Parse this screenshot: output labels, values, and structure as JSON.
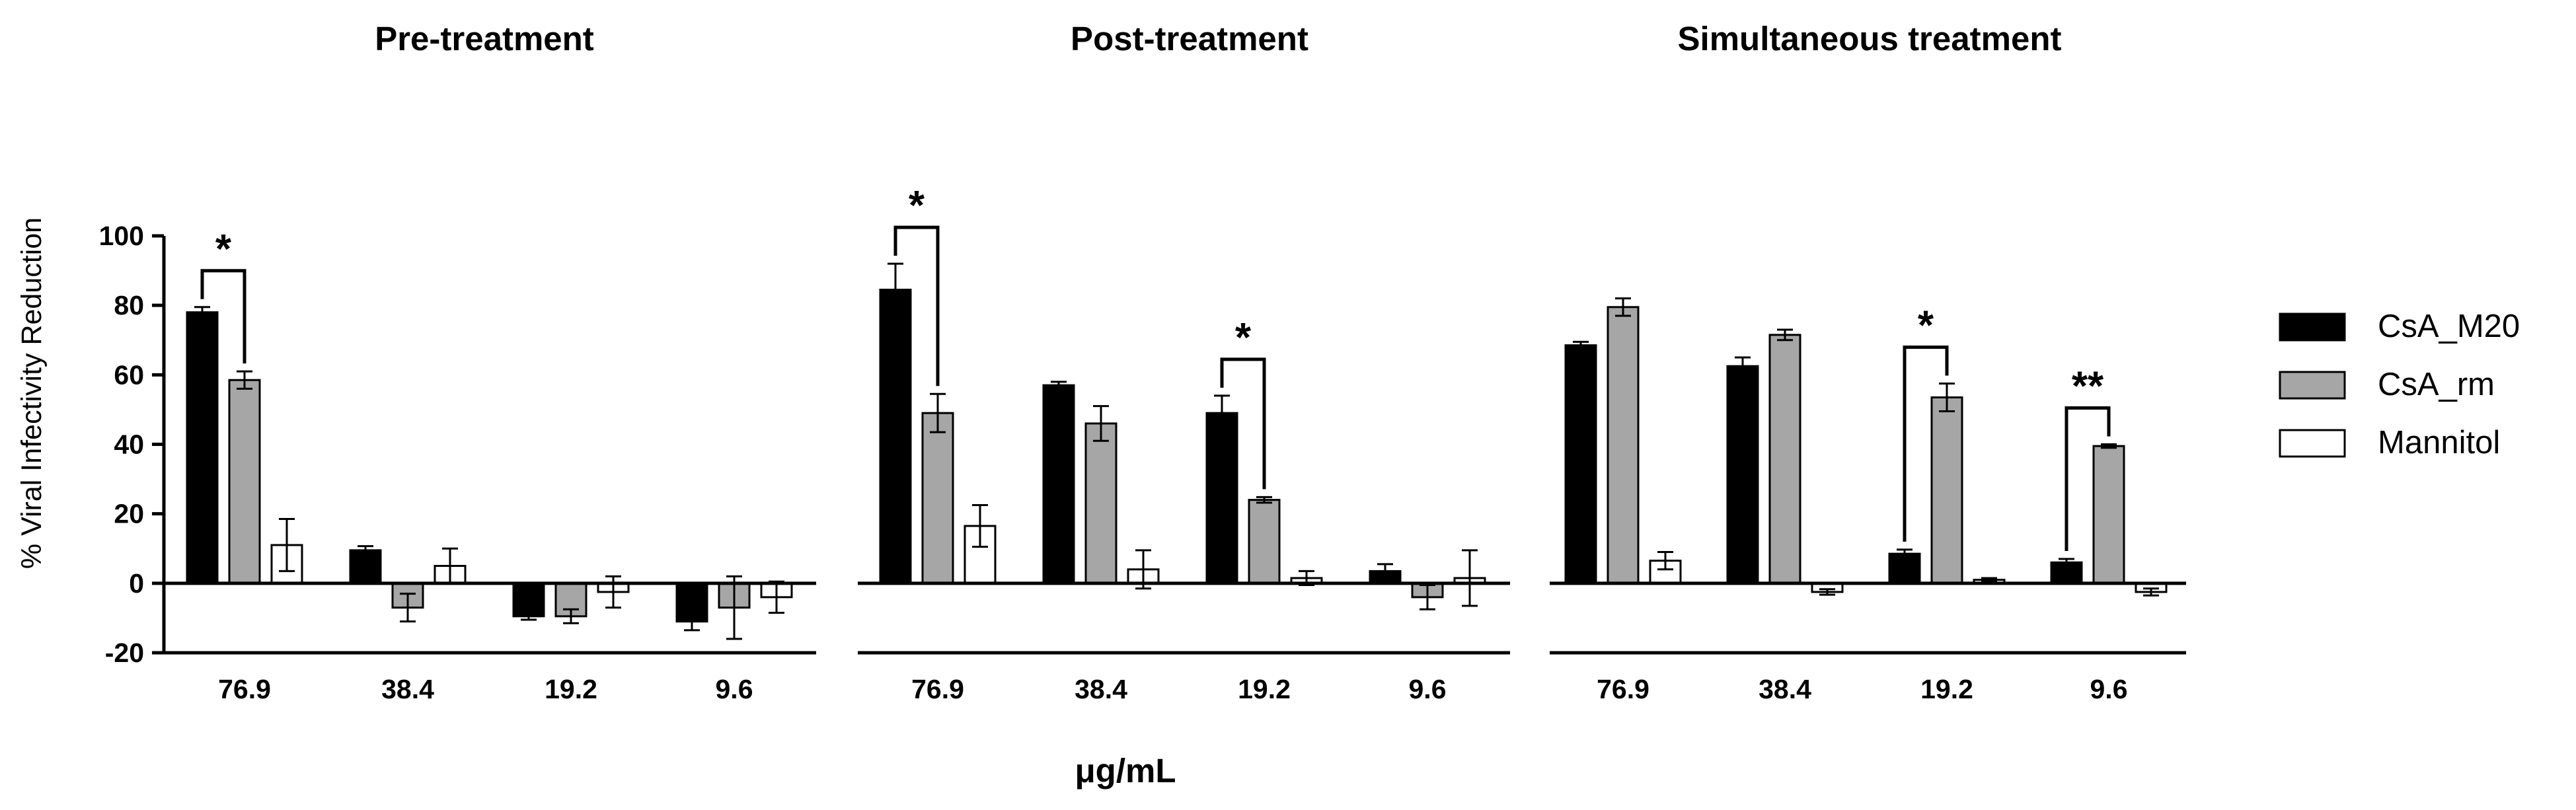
{
  "chart_data": {
    "type": "bar",
    "ylabel": "% Viral Infectivity Reduction",
    "xlabel": "μg/mL",
    "ylim": [
      -20,
      100
    ],
    "yticks": [
      "100",
      "80",
      "60",
      "40",
      "20",
      "0",
      "-20"
    ],
    "legend": [
      {
        "name": "CsA_M20",
        "color": "#000000"
      },
      {
        "name": "CsA_rm",
        "color": "#a6a6a6"
      },
      {
        "name": "Mannitol",
        "color": "#ffffff"
      }
    ],
    "panels": [
      {
        "title": "Pre-treatment",
        "categories": [
          "76.9",
          "38.4",
          "19.2",
          "9.6"
        ],
        "series": [
          {
            "name": "CsA_M20",
            "values": [
              78,
              9.5,
              -9.5,
              -11
            ],
            "errors": [
              1.5,
              1.2,
              1,
              2.5
            ]
          },
          {
            "name": "CsA_rm",
            "values": [
              58.5,
              -7,
              -9.5,
              -7
            ],
            "errors": [
              2.5,
              4,
              2,
              9
            ]
          },
          {
            "name": "Mannitol",
            "values": [
              11,
              5,
              -2.5,
              -4
            ],
            "errors": [
              7.5,
              5,
              4.5,
              4.5
            ]
          }
        ],
        "significance": [
          {
            "label": "*",
            "group": 0
          }
        ]
      },
      {
        "title": "Post-treatment",
        "categories": [
          "76.9",
          "38.4",
          "19.2",
          "9.6"
        ],
        "series": [
          {
            "name": "CsA_M20",
            "values": [
              84.5,
              57,
              49,
              3.5
            ],
            "errors": [
              7.5,
              1,
              5,
              2
            ]
          },
          {
            "name": "CsA_rm",
            "values": [
              49,
              46,
              24,
              -4
            ],
            "errors": [
              5.5,
              5,
              0.8,
              3.5
            ]
          },
          {
            "name": "Mannitol",
            "values": [
              16.5,
              4,
              1.5,
              1.5
            ],
            "errors": [
              6,
              5.5,
              2,
              8
            ]
          }
        ],
        "significance": [
          {
            "label": "*",
            "group": 0
          },
          {
            "label": "*",
            "group": 2
          }
        ]
      },
      {
        "title": "Simultaneous treatment",
        "categories": [
          "76.9",
          "38.4",
          "19.2",
          "9.6"
        ],
        "series": [
          {
            "name": "CsA_M20",
            "values": [
              68.5,
              62.5,
              8.5,
              6
            ],
            "errors": [
              1,
              2.5,
              1.2,
              1
            ]
          },
          {
            "name": "CsA_rm",
            "values": [
              79.5,
              71.5,
              53.5,
              39.5
            ],
            "errors": [
              2.5,
              1.5,
              4,
              0.5
            ]
          },
          {
            "name": "Mannitol",
            "values": [
              6.5,
              -2.5,
              1,
              -2.5
            ],
            "errors": [
              2.5,
              0.8,
              0.5,
              1
            ]
          }
        ],
        "significance": [
          {
            "label": "*",
            "group": 2
          },
          {
            "label": "**",
            "group": 3
          }
        ]
      }
    ]
  }
}
